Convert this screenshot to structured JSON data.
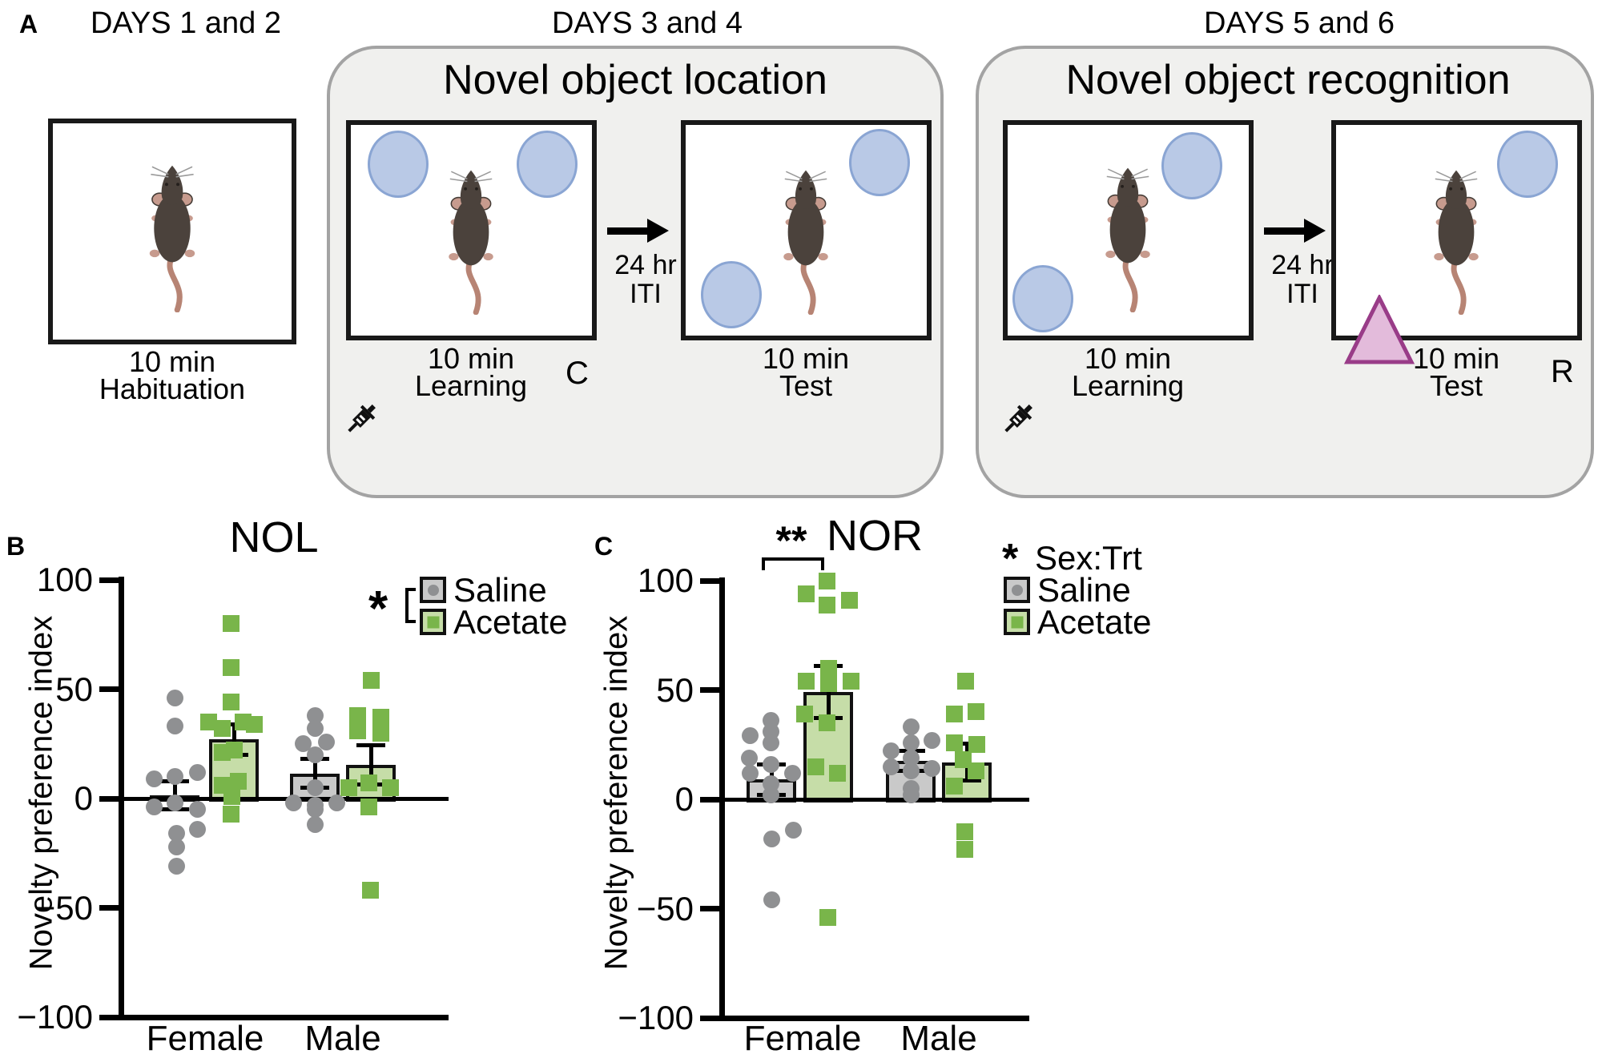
{
  "panel_a": {
    "label": "A",
    "habituation": {
      "header": "DAYS 1 and 2",
      "duration": "10 min",
      "phase": "Habituation"
    },
    "nol": {
      "header": "DAYS 3 and 4",
      "title": "Novel object location",
      "learning_duration": "10 min",
      "learning_phase": "Learning",
      "corner_label": "C",
      "iti_top": "24 hr",
      "iti_bottom": "ITI",
      "test_duration": "10 min",
      "test_phase": "Test"
    },
    "nor": {
      "header": "DAYS 5 and 6",
      "title": "Novel object recognition",
      "learning_duration": "10 min",
      "learning_phase": "Learning",
      "corner_label": "R",
      "iti_top": "24 hr",
      "iti_bottom": "ITI",
      "test_duration": "10 min",
      "test_phase": "Test"
    }
  },
  "panel_b": {
    "label": "B",
    "legend": {
      "significance": "*",
      "saline": "Saline",
      "acetate": "Acetate"
    }
  },
  "panel_c": {
    "label": "C",
    "significance_bracket": "**",
    "legend": {
      "significance": "*",
      "interaction": "Sex:Trt",
      "saline": "Saline",
      "acetate": "Acetate"
    }
  },
  "colors": {
    "saline_bar": "#c9c9c9",
    "saline_point": "#8f9092",
    "acetate_bar": "#c6dda8",
    "acetate_point": "#79b54a",
    "object_fill": "#b9c9e6",
    "object_stroke": "#8aa5d3",
    "triangle_fill": "#e3bbdb",
    "triangle_stroke": "#993c88",
    "axis": "#000000"
  },
  "chart_data": [
    {
      "type": "bar",
      "panel": "B",
      "title": "NOL",
      "ylabel": "Novelty preference index",
      "ylim": [
        -100,
        100
      ],
      "yticks": [
        100,
        50,
        0,
        -50,
        -100
      ],
      "ytick_labels": [
        "100",
        "50",
        "0",
        "−50",
        "−100"
      ],
      "categories": [
        "Female",
        "Male"
      ],
      "series_names": [
        "Saline",
        "Acetate"
      ],
      "legend_position": "top-right",
      "grid": false,
      "groups": [
        {
          "category": "Female",
          "series": "Saline",
          "mean": 1.5,
          "sem": 6.5,
          "points": [
            [
              0,
              46
            ],
            [
              0,
              33
            ],
            [
              28,
              12
            ],
            [
              0,
              10
            ],
            [
              -26,
              9
            ],
            [
              0,
              -2
            ],
            [
              -26,
              -4
            ],
            [
              28,
              -5
            ],
            [
              28,
              -14
            ],
            [
              2,
              -16
            ],
            [
              2,
              -22
            ],
            [
              2,
              -31
            ]
          ]
        },
        {
          "category": "Female",
          "series": "Acetate",
          "mean": 27,
          "sem": 7,
          "points": [
            [
              -4,
              80
            ],
            [
              -4,
              60
            ],
            [
              -4,
              44
            ],
            [
              -32,
              35
            ],
            [
              11,
              35
            ],
            [
              25,
              34
            ],
            [
              -15,
              32
            ],
            [
              0,
              22
            ],
            [
              -15,
              21
            ],
            [
              5,
              8
            ],
            [
              -15,
              6
            ],
            [
              -3,
              1
            ],
            [
              -4,
              -7
            ]
          ]
        },
        {
          "category": "Male",
          "series": "Saline",
          "mean": 11.5,
          "sem": 6.5,
          "points": [
            [
              0,
              38
            ],
            [
              0,
              32
            ],
            [
              14,
              26
            ],
            [
              -15,
              25
            ],
            [
              0,
              20
            ],
            [
              0,
              5
            ],
            [
              -27,
              -2
            ],
            [
              27,
              -2
            ],
            [
              0,
              -3
            ],
            [
              0,
              -5
            ],
            [
              0,
              -12
            ]
          ]
        },
        {
          "category": "Male",
          "series": "Acetate",
          "mean": 15.5,
          "sem": 9,
          "points": [
            [
              0,
              54
            ],
            [
              -17,
              38
            ],
            [
              12,
              37
            ],
            [
              -17,
              31
            ],
            [
              12,
              30
            ],
            [
              -3,
              7
            ],
            [
              -28,
              5
            ],
            [
              24,
              5
            ],
            [
              -3,
              -4
            ],
            [
              -1,
              -42
            ]
          ]
        }
      ]
    },
    {
      "type": "bar",
      "panel": "C",
      "title": "NOR",
      "ylabel": "Novelty preference index",
      "ylim": [
        -100,
        100
      ],
      "yticks": [
        100,
        50,
        0,
        -50,
        -100
      ],
      "ytick_labels": [
        "100",
        "50",
        "0",
        "−50",
        "−100"
      ],
      "categories": [
        "Female",
        "Male"
      ],
      "series_names": [
        "Saline",
        "Acetate"
      ],
      "legend_position": "top-right",
      "grid": false,
      "significance": {
        "pair": [
          "Female Saline",
          "Female Acetate"
        ],
        "label": "**"
      },
      "interaction_note": "* Sex:Trt",
      "groups": [
        {
          "category": "Female",
          "series": "Saline",
          "mean": 9,
          "sem": 7,
          "points": [
            [
              -1,
              36
            ],
            [
              -1,
              31
            ],
            [
              -27,
              29
            ],
            [
              -1,
              26
            ],
            [
              -28,
              19
            ],
            [
              -1,
              16
            ],
            [
              -27,
              12
            ],
            [
              26,
              12
            ],
            [
              -1,
              7
            ],
            [
              -1,
              2
            ],
            [
              27,
              -14
            ],
            [
              0,
              -18
            ],
            [
              0,
              -46
            ]
          ]
        },
        {
          "category": "Female",
          "series": "Acetate",
          "mean": 49,
          "sem": 12,
          "points": [
            [
              -2,
              100
            ],
            [
              -28,
              94
            ],
            [
              26,
              91
            ],
            [
              -2,
              89
            ],
            [
              0,
              60
            ],
            [
              -28,
              54
            ],
            [
              28,
              54
            ],
            [
              0,
              53
            ],
            [
              -30,
              39
            ],
            [
              -2,
              35
            ],
            [
              -16,
              15
            ],
            [
              11,
              12
            ],
            [
              -1,
              -54
            ]
          ]
        },
        {
          "category": "Male",
          "series": "Saline",
          "mean": 17.5,
          "sem": 4.5,
          "points": [
            [
              0,
              33
            ],
            [
              26,
              27
            ],
            [
              0,
              26
            ],
            [
              -25,
              22
            ],
            [
              0,
              19
            ],
            [
              -25,
              15
            ],
            [
              26,
              14
            ],
            [
              0,
              13
            ],
            [
              0,
              5
            ],
            [
              0,
              2
            ]
          ]
        },
        {
          "category": "Male",
          "series": "Acetate",
          "mean": 17,
          "sem": 8.5,
          "points": [
            [
              -2,
              54
            ],
            [
              11,
              40
            ],
            [
              -16,
              39
            ],
            [
              -16,
              26
            ],
            [
              12,
              25
            ],
            [
              -5,
              18
            ],
            [
              11,
              13
            ],
            [
              -16,
              6
            ],
            [
              -3,
              -15
            ],
            [
              -3,
              -23
            ]
          ]
        }
      ]
    }
  ]
}
